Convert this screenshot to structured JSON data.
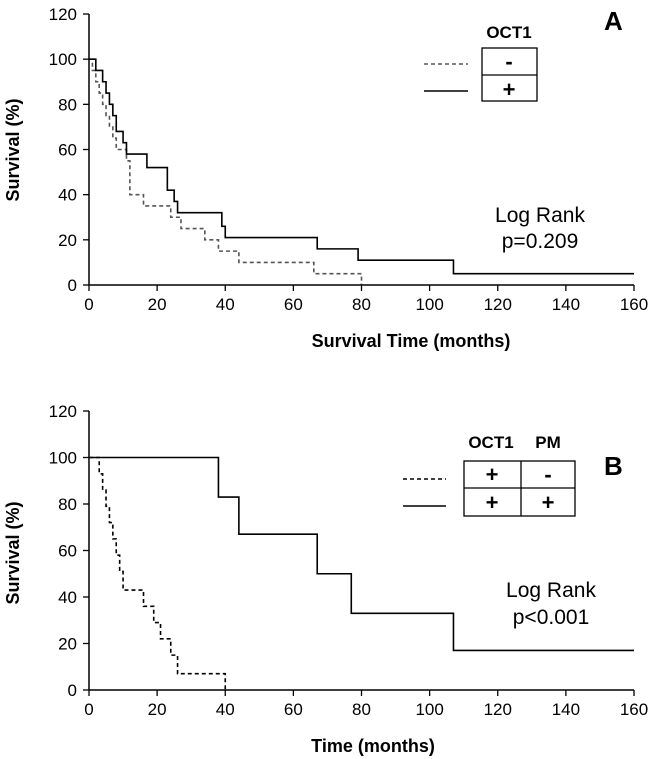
{
  "chart_data": [
    {
      "type": "line",
      "subtype": "kaplan-meier",
      "panel_label": "A",
      "xlabel": "Survival Time (months)",
      "ylabel": "Survival (%)",
      "xlim": [
        0,
        160
      ],
      "ylim": [
        0,
        120
      ],
      "xticks": [
        "0",
        "20",
        "40",
        "60",
        "80",
        "100",
        "120",
        "140",
        "160"
      ],
      "yticks": [
        "0",
        "20",
        "40",
        "60",
        "80",
        "100",
        "120"
      ],
      "legend": {
        "headers": [
          "OCT1"
        ],
        "rows": [
          {
            "style": "dashed",
            "symbols": [
              "-"
            ]
          },
          {
            "style": "solid",
            "symbols": [
              "+"
            ]
          }
        ]
      },
      "annotation": {
        "line1": "Log Rank",
        "line2": "p=0.209"
      },
      "series": [
        {
          "name": "OCT1 -",
          "style": "dashed",
          "color": "#555555",
          "x": [
            0,
            1,
            2,
            3,
            4,
            5,
            6,
            7,
            8,
            11,
            12,
            16,
            24,
            27,
            34,
            38,
            44,
            66,
            80
          ],
          "y": [
            100,
            95,
            90,
            85,
            80,
            75,
            70,
            65,
            60,
            55,
            40,
            35,
            30,
            25,
            20,
            15,
            10,
            5,
            0
          ]
        },
        {
          "name": "OCT1 +",
          "style": "solid",
          "color": "#000000",
          "x": [
            0,
            2,
            4,
            5,
            6,
            7,
            8,
            10,
            11,
            17,
            23,
            25,
            26,
            39,
            40,
            67,
            79,
            107,
            160
          ],
          "y": [
            100,
            95,
            90,
            85,
            80,
            75,
            68,
            63,
            58,
            52,
            42,
            37,
            32,
            26,
            21,
            16,
            11,
            5,
            5
          ]
        }
      ]
    },
    {
      "type": "line",
      "subtype": "kaplan-meier",
      "panel_label": "B",
      "xlabel": "Time (months)",
      "ylabel": "Survival (%)",
      "xlim": [
        0,
        160
      ],
      "ylim": [
        0,
        120
      ],
      "xticks": [
        "0",
        "20",
        "40",
        "60",
        "80",
        "100",
        "120",
        "140",
        "160"
      ],
      "yticks": [
        "0",
        "20",
        "40",
        "60",
        "80",
        "100",
        "120"
      ],
      "legend": {
        "headers": [
          "OCT1",
          "PM"
        ],
        "rows": [
          {
            "style": "dashed",
            "symbols": [
              "+",
              "-"
            ]
          },
          {
            "style": "solid",
            "symbols": [
              "+",
              "+"
            ]
          }
        ]
      },
      "annotation": {
        "line1": "Log Rank",
        "line2": "p<0.001"
      },
      "series": [
        {
          "name": "OCT1 + / PM -",
          "style": "dashed",
          "color": "#000000",
          "x": [
            0,
            3,
            4,
            5,
            6,
            7,
            8,
            9,
            10,
            16,
            19,
            21,
            24,
            26,
            40
          ],
          "y": [
            100,
            93,
            86,
            79,
            72,
            65,
            58,
            51,
            43,
            36,
            29,
            22,
            15,
            7,
            0
          ]
        },
        {
          "name": "OCT1 + / PM +",
          "style": "solid",
          "color": "#000000",
          "x": [
            0,
            38,
            44,
            67,
            77,
            107,
            160
          ],
          "y": [
            100,
            83,
            67,
            50,
            33,
            17,
            17
          ]
        }
      ]
    }
  ]
}
